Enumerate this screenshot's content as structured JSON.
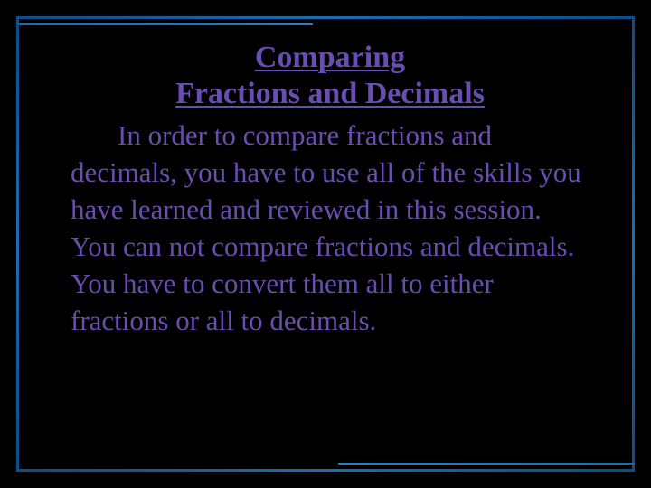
{
  "slide": {
    "title_line1": "Comparing",
    "title_line2": "Fractions and Decimals",
    "body": "In order to compare fractions and decimals, you have to use all of the skills you have learned and reviewed in this session. You can not compare fractions and decimals. You have to convert them all to either fractions or all to decimals."
  },
  "style": {
    "background_color": "#000000",
    "text_color": "#6a4db0",
    "border_color": "#1a6db5",
    "title_fontsize": 34,
    "body_fontsize": 31,
    "font_family": "Georgia"
  }
}
